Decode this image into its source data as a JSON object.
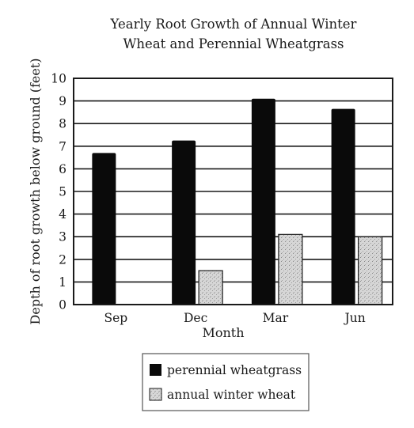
{
  "chart_data": {
    "type": "bar",
    "title": [
      "Yearly Root Growth of Annual Winter",
      "Wheat and Perennial Wheatgrass"
    ],
    "xlabel": "Month",
    "ylabel": "Depth of root growth below ground (feet)",
    "categories": [
      "Sep",
      "Dec",
      "Mar",
      "Jun"
    ],
    "ylim": [
      0,
      10
    ],
    "yticks": [
      "0",
      "1",
      "2",
      "3",
      "4",
      "5",
      "6",
      "7",
      "8",
      "9",
      "10"
    ],
    "grid": true,
    "legend_position": "bottom-center",
    "series": [
      {
        "name": "perennial wheatgrass",
        "values": [
          6.7,
          7.25,
          9.1,
          8.65
        ],
        "color": "#0a0a0a"
      },
      {
        "name": "annual winter wheat",
        "values": [
          0,
          1.5,
          3.1,
          3.0
        ],
        "color": "#d4d4d4"
      }
    ]
  }
}
